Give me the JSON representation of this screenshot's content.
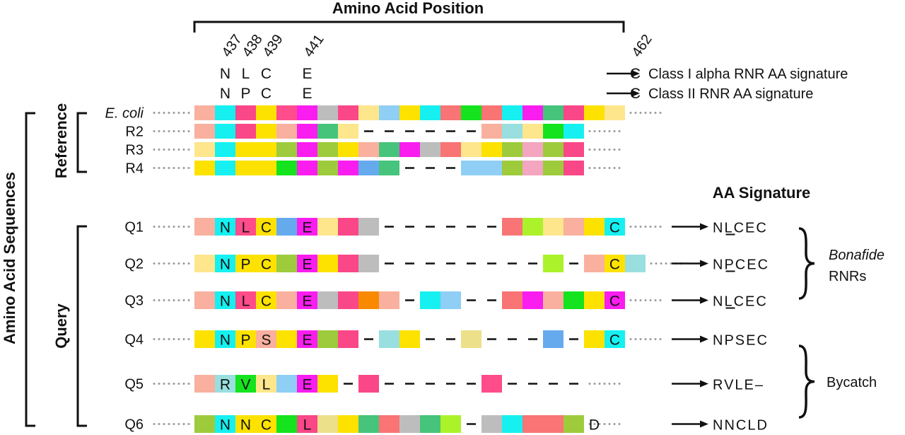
{
  "title": "Amino Acid Position",
  "y_axis_label": "Amino Acid Sequences",
  "group_labels": {
    "reference": "Reference",
    "query": "Query"
  },
  "positions": [
    {
      "label": "437",
      "col": 1
    },
    {
      "label": "438",
      "col": 2
    },
    {
      "label": "439",
      "col": 3
    },
    {
      "label": "441",
      "col": 5
    },
    {
      "label": "462",
      "col": 21
    }
  ],
  "class_signatures": [
    {
      "residues": [
        "N",
        "L",
        "C",
        "E",
        "C"
      ],
      "label": "Class I alpha RNR AA signature"
    },
    {
      "residues": [
        "N",
        "P",
        "C",
        "E",
        "C"
      ],
      "label": "Class II RNR AA signature"
    }
  ],
  "aa_signature_header": "AA Signature",
  "palette": {
    "K": "#f9b09e",
    "C": "#16f0f0",
    "P": "#f94788",
    "Y": "#fde200",
    "G": "#bdbdbd",
    "L": "#fde68c",
    "B": "#8fcef5",
    "O": "#f97474",
    "N": "#14e31e",
    "S": "#47c47c",
    "M": "#f91df0",
    "A": "#9dcb3c",
    "T": "#99dfdf",
    "R": "#f98a00",
    "Q": "#66aaee",
    "H": "#acf22a",
    "W": "#ede08a",
    "V": "#ff4c8b",
    "U": "#f4a5c0",
    "D": "#f9e35c",
    "E": "#fb4fe8"
  },
  "reference_rows": [
    {
      "label": "E. coli",
      "italic": true,
      "cells": "KCPYVMGPLBYCONOCMSPYL"
    },
    {
      "label": "R2",
      "italic": false,
      "cells": "KCPYKMSL------KTLNC"
    },
    {
      "label": "R3",
      "italic": false,
      "cells": "LCYYAMAYKSMGOLYAUAP"
    },
    {
      "label": "R4",
      "italic": false,
      "cells": "YCYYNMAMQS---BBAUAP"
    }
  ],
  "query_rows": [
    {
      "label": "Q1",
      "cells": "KCVYQMLPG------OHLKYC",
      "letters": {
        "1": "N",
        "2": "L",
        "3": "C",
        "5": "E",
        "20": "C"
      },
      "signature": "NLCEC",
      "underline_index": 1
    },
    {
      "label": "Q2",
      "cells": "LCYYAMYPG--------H-KYT",
      "letters": {
        "1": "N",
        "2": "P",
        "3": "C",
        "5": "E",
        "20": "C"
      },
      "signature": "NPCEC",
      "underline_index": 1
    },
    {
      "label": "Q3",
      "cells": "KCVYKMGPRK-CB--OMKNYM",
      "letters": {
        "1": "N",
        "2": "L",
        "3": "C",
        "5": "E",
        "20": "C"
      },
      "signature": "NLCEC",
      "underline_index": 1
    },
    {
      "label": "Q4",
      "cells": "YCYKYMAP-TY--W---Q-YC",
      "letters": {
        "1": "N",
        "2": "P",
        "3": "S",
        "5": "E",
        "20": "C"
      },
      "signature": "NPSEC",
      "underline_index": -1
    },
    {
      "label": "Q5",
      "cells": "KTNLBMY-P-----V----",
      "letters": {
        "1": "R",
        "2": "V",
        "3": "L",
        "5": "E"
      },
      "signature": "RVLE–",
      "underline_index": -1
    },
    {
      "label": "Q6",
      "cells": "ACYYNPWYSOGSH-GCOOA",
      "letters": {
        "1": "N",
        "2": "N",
        "3": "C",
        "5": "L",
        "19": "D"
      },
      "signature": "NNCLD",
      "underline_index": -1
    }
  ],
  "signature_groups": [
    {
      "label_italic": "Bonafide",
      "label": "RNRs",
      "rows": [
        "Q1",
        "Q2",
        "Q3"
      ]
    },
    {
      "label_italic": "",
      "label": "Bycatch",
      "rows": [
        "Q4",
        "Q5",
        "Q6"
      ]
    }
  ]
}
